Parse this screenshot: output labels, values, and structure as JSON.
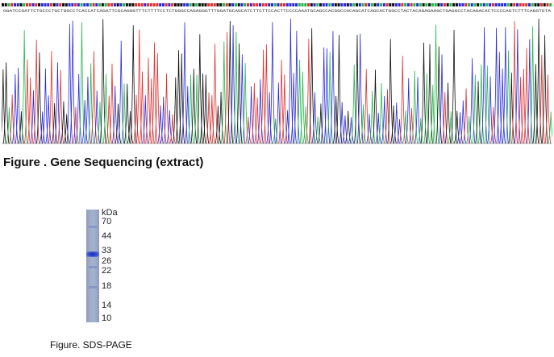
{
  "figures": {
    "sequencing": {
      "caption": "Figure . Gene Sequencing (extract)",
      "base_call_text": "GGATCCGATTCTGCCCTGCTGGCCTCACCATCAGATTCGCAGGGTTTCTTTTCCTCTGGGCCAGAGGGTTTGGATGCAGCATCTTCTTCCACTTCCCCAAATGCAGCCACGGCCGCAGCATCAGCACTGGCCTACTACAGAGAAGCTGAGGCCTACAGACACTCCCCAGTCTTTCAGGTGTA",
      "trace_colors": {
        "A": "#22b84a",
        "C": "#2a2ae0",
        "G": "#111111",
        "T": "#e03030"
      }
    },
    "sds_page": {
      "caption": "Figure. SDS-PAGE",
      "unit_label": "kDa",
      "markers": [
        "70",
        "44",
        "33",
        "26",
        "22",
        "18",
        "14",
        "10"
      ],
      "band_kda": "33",
      "band_color": "#2238c8"
    }
  }
}
